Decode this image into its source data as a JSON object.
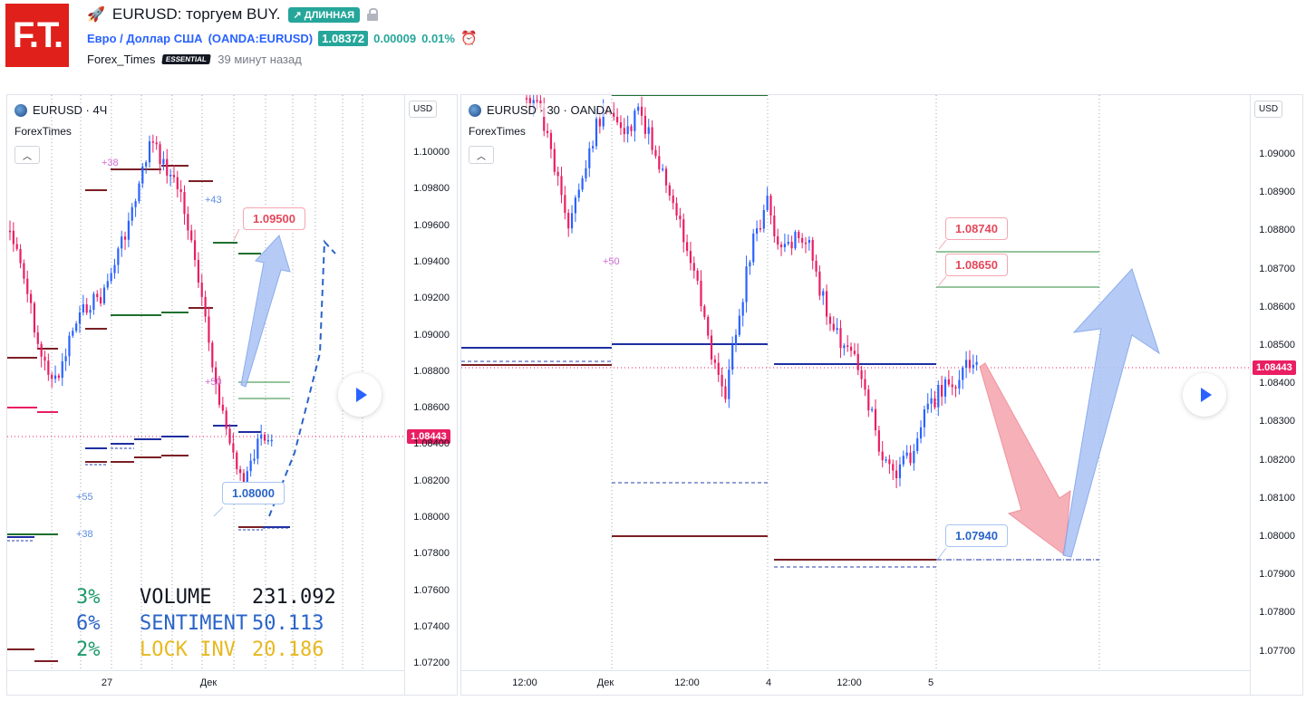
{
  "header": {
    "logo_text": "F.T.",
    "title": "EURUSD: торгуем BUY.",
    "direction_badge": "↗ ДЛИННАЯ",
    "symbol_name": "Евро / Доллар США",
    "symbol_ticker": "(OANDA:EURUSD)",
    "price": "1.08372",
    "change": "0.00009",
    "change_pct": "0.01%",
    "author": "Forex_Times",
    "author_badge": "ESSENTIAL",
    "time_ago": "39 минут назад"
  },
  "colors": {
    "brand": "#e0201b",
    "up": "#26a69a",
    "candle_up": "#2962ff",
    "candle_down": "#e91e63",
    "accent": "#2962ff"
  },
  "chart_left": {
    "legend": "EURUSD · 4Ч",
    "indicator": "ForexTimes",
    "currency": "USD",
    "current_price": "1.08443",
    "y_ticks": [
      "1.10000",
      "1.09800",
      "1.09600",
      "1.09400",
      "1.09200",
      "1.09000",
      "1.08800",
      "1.08600",
      "1.08400",
      "1.08200",
      "1.08000",
      "1.07800",
      "1.07600",
      "1.07400",
      "1.07200"
    ],
    "x_ticks": [
      "27",
      "Дек"
    ],
    "target_up": "1.09500",
    "target_down": "1.08000",
    "pct_labels": [
      "+38",
      "+43",
      "+50",
      "+55",
      "+38",
      "+38"
    ],
    "stats": [
      {
        "pct": "3%",
        "name": "VOLUME",
        "value": "231.092",
        "color": "#1e9a6a"
      },
      {
        "pct": "6%",
        "name": "SENTIMENT",
        "value": "50.113",
        "color": "#2a64c8"
      },
      {
        "pct": "2%",
        "name": "LOCK INV",
        "value": "20.186",
        "color": "#e8b820"
      }
    ]
  },
  "chart_right": {
    "legend": "EURUSD · 30 · OANDA",
    "indicator": "ForexTimes",
    "currency": "USD",
    "current_price": "1.08443",
    "y_ticks": [
      "1.09000",
      "1.08900",
      "1.08800",
      "1.08700",
      "1.08600",
      "1.08500",
      "1.08400",
      "1.08300",
      "1.08200",
      "1.08100",
      "1.08000",
      "1.07900",
      "1.07800",
      "1.07700"
    ],
    "x_ticks": [
      "12:00",
      "Дек",
      "12:00",
      "4",
      "12:00",
      "5"
    ],
    "target_1": "1.08740",
    "target_2": "1.08650",
    "target_down": "1.07940",
    "pct_label": "+50"
  }
}
